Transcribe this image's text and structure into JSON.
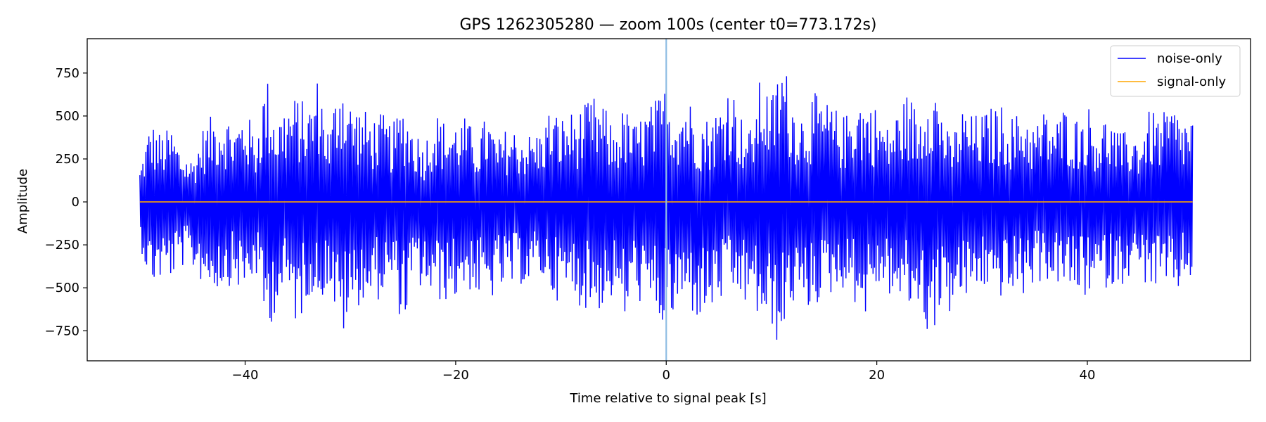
{
  "chart_data": {
    "type": "line",
    "title": "GPS 1262305280 — zoom 100s (center t0=773.172s)",
    "xlabel": "Time relative to signal peak [s]",
    "ylabel": "Amplitude",
    "xlim": [
      -55,
      55.5
    ],
    "ylim": [
      -925,
      950
    ],
    "xticks": [
      -40,
      -20,
      0,
      20,
      40
    ],
    "xtick_labels": [
      "−40",
      "−20",
      "0",
      "20",
      "40"
    ],
    "yticks": [
      750,
      500,
      250,
      0,
      -250,
      -500,
      -750
    ],
    "ytick_labels": [
      "750",
      "500",
      "250",
      "0",
      "−250",
      "−500",
      "−750"
    ],
    "grid": false,
    "legend_position": "top-right",
    "vline": {
      "x": 0,
      "color": "#8fbde3"
    },
    "series": [
      {
        "name": "noise-only",
        "color": "#0000ff",
        "x_range": [
          -50,
          50
        ],
        "envelope": {
          "x": [
            -50,
            -49,
            -48,
            -47,
            -46,
            -45,
            -44,
            -43,
            -42,
            -41,
            -40,
            -39,
            -38,
            -37,
            -36,
            -35,
            -34,
            -33,
            -32,
            -31,
            -30,
            -29,
            -28,
            -27,
            -26,
            -25,
            -24,
            -23,
            -22,
            -21,
            -20,
            -19,
            -18,
            -17,
            -16,
            -15,
            -14,
            -13,
            -12,
            -11,
            -10,
            -9,
            -8,
            -7,
            -6,
            -5,
            -4,
            -3,
            -2,
            -1,
            0,
            1,
            2,
            3,
            4,
            5,
            6,
            7,
            8,
            9,
            10,
            11,
            12,
            13,
            14,
            15,
            16,
            17,
            18,
            19,
            20,
            21,
            22,
            23,
            24,
            25,
            26,
            27,
            28,
            29,
            30,
            31,
            32,
            33,
            34,
            35,
            36,
            37,
            38,
            39,
            40,
            41,
            42,
            43,
            44,
            45,
            46,
            47,
            48,
            49,
            50
          ],
          "upper": [
            200,
            480,
            400,
            440,
            300,
            250,
            440,
            520,
            550,
            450,
            560,
            390,
            760,
            500,
            600,
            620,
            560,
            760,
            400,
            820,
            600,
            560,
            500,
            520,
            450,
            590,
            450,
            350,
            540,
            470,
            480,
            500,
            380,
            520,
            360,
            450,
            420,
            400,
            420,
            560,
            500,
            530,
            550,
            620,
            580,
            430,
            560,
            460,
            540,
            600,
            690,
            580,
            640,
            500,
            500,
            560,
            760,
            520,
            430,
            750,
            620,
            870,
            630,
            530,
            640,
            600,
            550,
            500,
            650,
            600,
            560,
            440,
            550,
            650,
            520,
            800,
            620,
            350,
            560,
            510,
            520,
            560,
            570,
            500,
            560,
            450,
            550,
            480,
            580,
            500,
            580,
            460,
            520,
            400,
            420,
            400,
            550,
            500,
            580,
            500,
            520
          ],
          "lower": [
            -250,
            -500,
            -460,
            -450,
            -380,
            -400,
            -480,
            -520,
            -500,
            -480,
            -560,
            -420,
            -790,
            -620,
            -560,
            -750,
            -540,
            -600,
            -480,
            -830,
            -700,
            -580,
            -600,
            -560,
            -500,
            -750,
            -500,
            -520,
            -600,
            -580,
            -580,
            -500,
            -560,
            -620,
            -520,
            -540,
            -480,
            -500,
            -440,
            -530,
            -600,
            -560,
            -620,
            -650,
            -630,
            -560,
            -720,
            -520,
            -660,
            -700,
            -760,
            -660,
            -620,
            -700,
            -680,
            -600,
            -560,
            -580,
            -640,
            -700,
            -820,
            -830,
            -600,
            -680,
            -620,
            -560,
            -540,
            -500,
            -600,
            -680,
            -500,
            -540,
            -600,
            -640,
            -620,
            -820,
            -650,
            -660,
            -600,
            -560,
            -500,
            -560,
            -560,
            -560,
            -560,
            -480,
            -460,
            -480,
            -520,
            -560,
            -560,
            -520,
            -500,
            -500,
            -440,
            -440,
            -520,
            -500,
            -580,
            -500,
            -440
          ]
        }
      },
      {
        "name": "signal-only",
        "color": "#ffa500",
        "x": [
          -50,
          50
        ],
        "y": [
          0,
          0
        ]
      }
    ]
  }
}
